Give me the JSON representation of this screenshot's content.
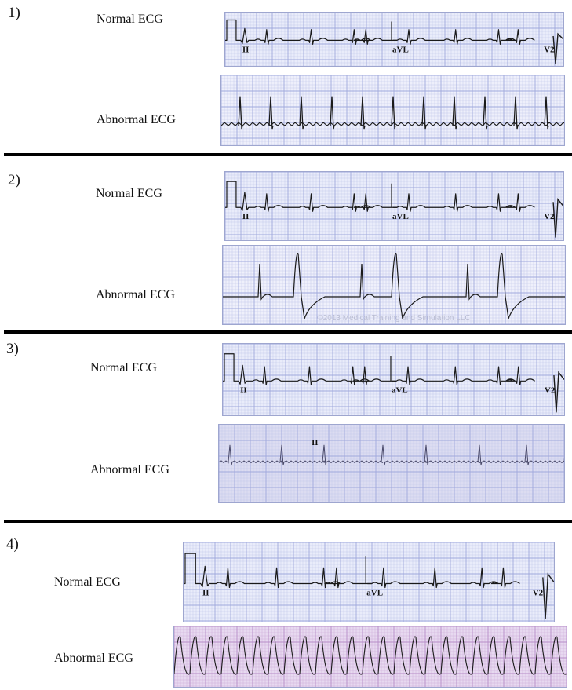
{
  "panels": [
    {
      "number": "1)",
      "normal_label": "Normal ECG",
      "abnormal_label": "Abnormal ECG",
      "normal_leads": [
        "II",
        "aVL",
        "V2"
      ],
      "abnormal_leads": [],
      "abnormal_watermark": "",
      "colors": {
        "normal_bg": "#e9ecfa",
        "abnormal_bg": "#eeeffb"
      }
    },
    {
      "number": "2)",
      "normal_label": "Normal ECG",
      "abnormal_label": "Abnormal ECG",
      "normal_leads": [
        "II",
        "aVL",
        "V2"
      ],
      "abnormal_leads": [],
      "abnormal_watermark": "©2013 Medical Training and Simulation LLC",
      "colors": {
        "normal_bg": "#e9ecfa",
        "abnormal_bg": "#eff0fb"
      }
    },
    {
      "number": "3)",
      "normal_label": "Normal ECG",
      "abnormal_label": "Abnormal ECG",
      "normal_leads": [
        "II",
        "aVL",
        "V2"
      ],
      "abnormal_leads": [
        "II"
      ],
      "abnormal_watermark": "",
      "colors": {
        "normal_bg": "#e9ecfa",
        "abnormal_bg": "#dcdcf1"
      }
    },
    {
      "number": "4)",
      "normal_label": "Normal ECG",
      "abnormal_label": "Abnormal ECG",
      "normal_leads": [
        "II",
        "aVL",
        "V2"
      ],
      "abnormal_leads": [],
      "abnormal_watermark": "",
      "colors": {
        "normal_bg": "#e9ecfa",
        "abnormal_bg": "#e7d9f0"
      }
    }
  ]
}
